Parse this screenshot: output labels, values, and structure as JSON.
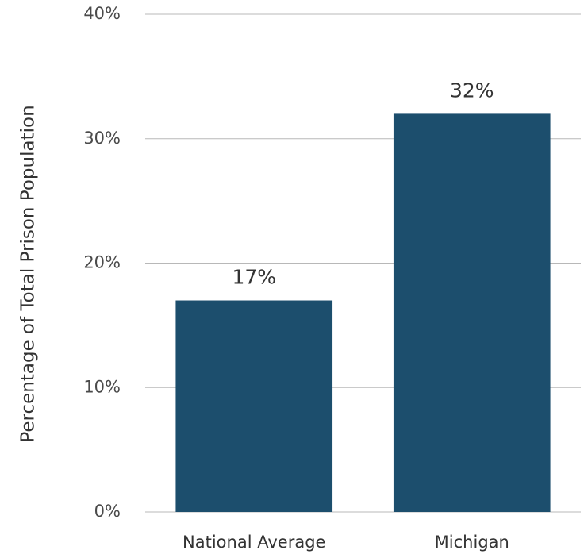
{
  "chart_data": {
    "type": "bar",
    "ylabel": "Percentage of Total Prison Population",
    "categories": [
      "National Average",
      "Michigan"
    ],
    "values": [
      17,
      32
    ],
    "value_labels": [
      "17%",
      "32%"
    ],
    "color": "#1c4e6d",
    "ylim": [
      0,
      40
    ],
    "yticks": [
      {
        "value": 0,
        "label": "0%"
      },
      {
        "value": 10,
        "label": "10%"
      },
      {
        "value": 20,
        "label": "20%"
      },
      {
        "value": 30,
        "label": "30%"
      },
      {
        "value": 40,
        "label": "40%"
      }
    ],
    "grid": true
  }
}
